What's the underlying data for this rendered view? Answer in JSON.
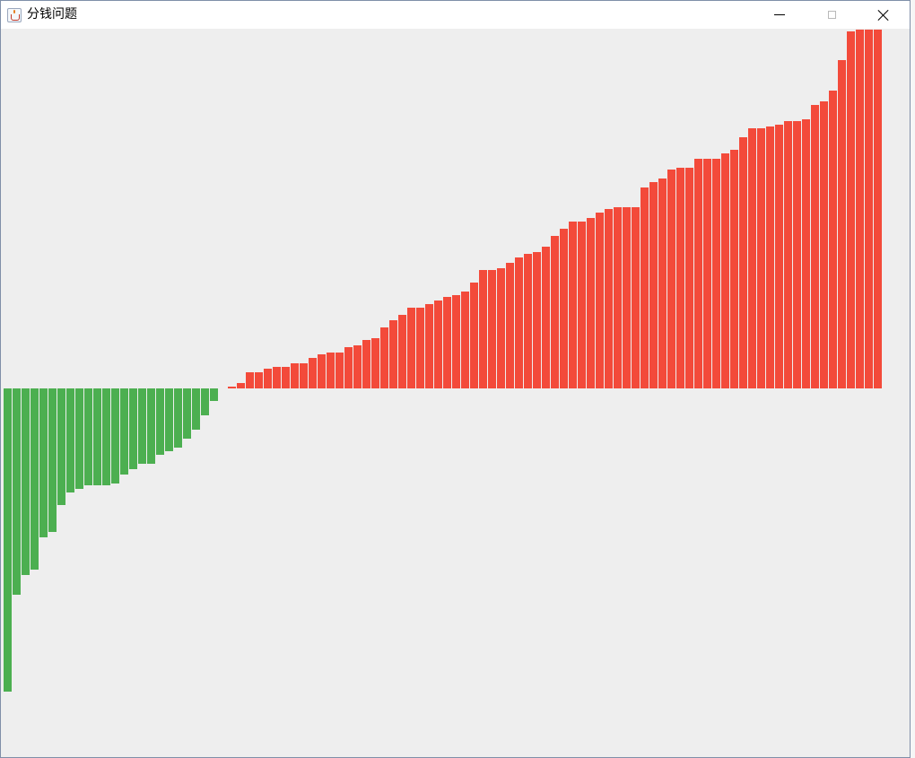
{
  "window": {
    "title": "分钱问题",
    "icon": "java-cup-icon",
    "controls": [
      "minimize",
      "maximize",
      "close"
    ]
  },
  "colors": {
    "background": "#eeeeee",
    "positive": "#f34a3a",
    "negative": "#4caf50"
  },
  "chart_data": {
    "type": "bar",
    "baseline": 0,
    "values": [
      -169,
      -115,
      -104,
      -101,
      -83,
      -80,
      -65,
      -58,
      -56,
      -54,
      -54,
      -54,
      -53,
      -48,
      -45,
      -42,
      -42,
      -37,
      -35,
      -33,
      -28,
      -23,
      -15,
      -7,
      0,
      1,
      3,
      9,
      9,
      11,
      12,
      12,
      14,
      14,
      17,
      19,
      20,
      20,
      23,
      24,
      27,
      28,
      34,
      38,
      41,
      45,
      45,
      47,
      49,
      51,
      52,
      54,
      59,
      66,
      66,
      67,
      70,
      73,
      75,
      76,
      79,
      85,
      89,
      93,
      93,
      95,
      98,
      100,
      101,
      101,
      101,
      112,
      115,
      117,
      122,
      123,
      123,
      128,
      128,
      128,
      131,
      133,
      140,
      145,
      145,
      146,
      147,
      149,
      149,
      150,
      158,
      160,
      166,
      183,
      199,
      200,
      200,
      200
    ]
  }
}
